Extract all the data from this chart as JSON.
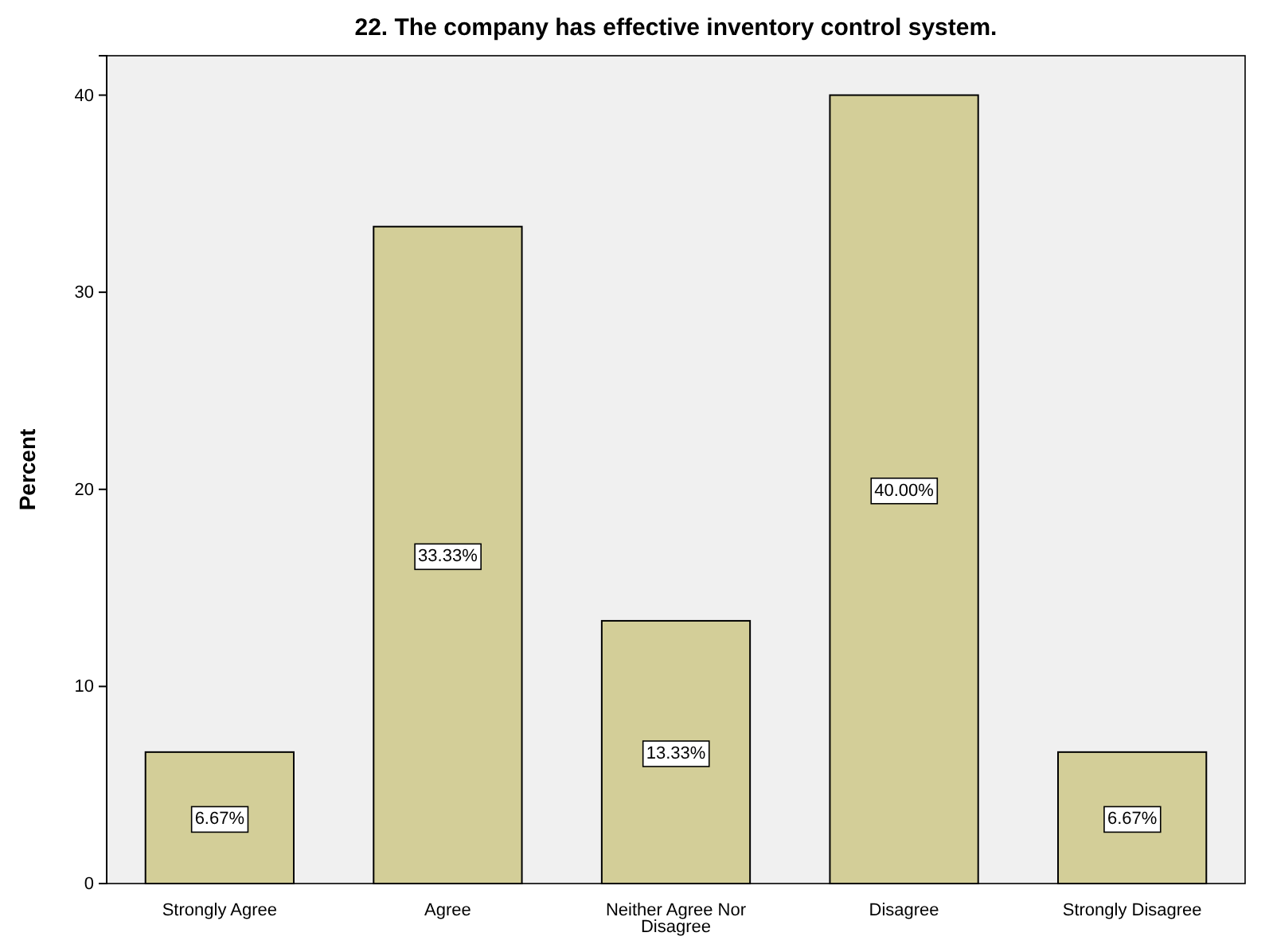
{
  "chart_data": {
    "type": "bar",
    "title": "22. The company has effective inventory control system.",
    "ylabel": "Percent",
    "categories": [
      "Strongly Agree",
      "Agree",
      "Neither Agree Nor Disagree",
      "Disagree",
      "Strongly Disagree"
    ],
    "values": [
      6.67,
      33.33,
      13.33,
      40.0,
      6.67
    ],
    "value_labels": [
      "6.67%",
      "33.33%",
      "13.33%",
      "40.00%",
      "6.67%"
    ],
    "color": "#d3ce98",
    "ylim": [
      0,
      42
    ],
    "yticks": [
      0,
      10,
      20,
      30,
      40
    ]
  }
}
